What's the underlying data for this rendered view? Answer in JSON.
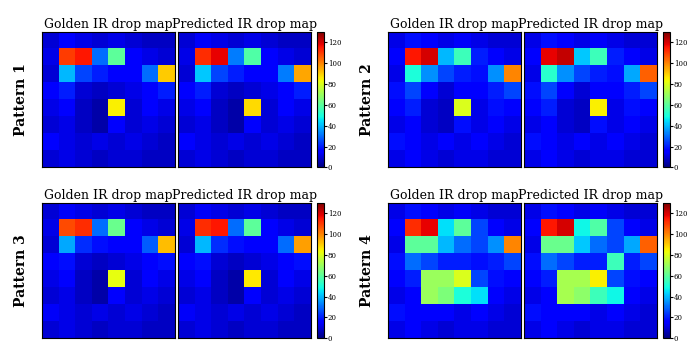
{
  "chart_data": [
    {
      "type": "heatmap",
      "group": "Pattern 1",
      "title": "Golden IR drop map",
      "tick_labels": false,
      "color_range": [
        0,
        130
      ],
      "cells": [
        [
          10,
          15,
          12,
          10,
          12,
          10,
          8,
          8
        ],
        [
          12,
          110,
          115,
          30,
          60,
          15,
          12,
          10
        ],
        [
          10,
          40,
          25,
          20,
          15,
          15,
          30,
          90
        ],
        [
          15,
          20,
          10,
          8,
          10,
          12,
          15,
          20
        ],
        [
          12,
          15,
          8,
          5,
          85,
          10,
          15,
          12
        ],
        [
          10,
          12,
          8,
          5,
          15,
          10,
          12,
          10
        ],
        [
          15,
          12,
          10,
          12,
          10,
          12,
          10,
          8
        ],
        [
          10,
          12,
          10,
          8,
          10,
          10,
          8,
          8
        ]
      ]
    },
    {
      "type": "heatmap",
      "group": "Pattern 1",
      "title": "Predicted IR drop map",
      "tick_labels": false,
      "color_range": [
        0,
        130
      ],
      "colorbar_ticks": [
        0,
        20,
        40,
        60,
        80,
        100,
        120
      ],
      "cells": [
        [
          10,
          14,
          12,
          10,
          12,
          10,
          8,
          8
        ],
        [
          12,
          112,
          118,
          32,
          58,
          15,
          12,
          10
        ],
        [
          10,
          42,
          25,
          20,
          15,
          15,
          32,
          95
        ],
        [
          15,
          20,
          10,
          8,
          10,
          12,
          15,
          20
        ],
        [
          12,
          15,
          8,
          5,
          88,
          10,
          15,
          12
        ],
        [
          10,
          12,
          8,
          5,
          15,
          10,
          12,
          10
        ],
        [
          15,
          12,
          10,
          12,
          10,
          12,
          10,
          8
        ],
        [
          10,
          12,
          10,
          8,
          10,
          10,
          8,
          8
        ]
      ]
    },
    {
      "type": "heatmap",
      "group": "Pattern 2",
      "title": "Golden IR drop map",
      "tick_labels": false,
      "color_range": [
        0,
        130
      ],
      "cells": [
        [
          12,
          18,
          15,
          12,
          14,
          12,
          10,
          10
        ],
        [
          15,
          115,
          120,
          40,
          55,
          20,
          15,
          12
        ],
        [
          12,
          50,
          35,
          25,
          20,
          18,
          35,
          100
        ],
        [
          18,
          25,
          15,
          10,
          15,
          15,
          20,
          25
        ],
        [
          15,
          20,
          10,
          8,
          80,
          12,
          18,
          15
        ],
        [
          12,
          15,
          10,
          8,
          18,
          12,
          15,
          12
        ],
        [
          18,
          15,
          12,
          15,
          12,
          15,
          12,
          10
        ],
        [
          12,
          15,
          12,
          10,
          12,
          12,
          10,
          10
        ]
      ]
    },
    {
      "type": "heatmap",
      "group": "Pattern 2",
      "title": "Predicted IR drop map",
      "tick_labels": false,
      "color_range": [
        0,
        130
      ],
      "colorbar_ticks": [
        0,
        20,
        40,
        60,
        80,
        100,
        120
      ],
      "cells": [
        [
          12,
          18,
          15,
          12,
          14,
          12,
          10,
          10
        ],
        [
          15,
          118,
          122,
          42,
          55,
          20,
          15,
          12
        ],
        [
          12,
          52,
          35,
          25,
          20,
          18,
          38,
          105
        ],
        [
          18,
          25,
          15,
          10,
          15,
          15,
          20,
          25
        ],
        [
          15,
          20,
          10,
          8,
          85,
          12,
          18,
          15
        ],
        [
          12,
          15,
          10,
          8,
          18,
          12,
          15,
          12
        ],
        [
          18,
          15,
          12,
          15,
          12,
          15,
          12,
          10
        ],
        [
          12,
          15,
          12,
          10,
          12,
          12,
          10,
          10
        ]
      ]
    },
    {
      "type": "heatmap",
      "group": "Pattern 3",
      "title": "Golden IR drop map",
      "tick_labels": false,
      "color_range": [
        0,
        130
      ],
      "cells": [
        [
          10,
          14,
          12,
          10,
          12,
          10,
          8,
          8
        ],
        [
          12,
          108,
          112,
          30,
          62,
          15,
          12,
          10
        ],
        [
          10,
          38,
          22,
          18,
          15,
          15,
          28,
          92
        ],
        [
          15,
          18,
          10,
          8,
          10,
          12,
          15,
          18
        ],
        [
          12,
          15,
          8,
          5,
          82,
          10,
          15,
          12
        ],
        [
          10,
          12,
          8,
          5,
          15,
          10,
          12,
          10
        ],
        [
          14,
          12,
          10,
          12,
          10,
          12,
          10,
          8
        ],
        [
          10,
          12,
          10,
          8,
          10,
          10,
          8,
          8
        ]
      ]
    },
    {
      "type": "heatmap",
      "group": "Pattern 3",
      "title": "Predicted IR drop map",
      "tick_labels": false,
      "color_range": [
        0,
        130
      ],
      "colorbar_ticks": [
        0,
        20,
        40,
        60,
        80,
        100,
        120
      ],
      "cells": [
        [
          10,
          14,
          12,
          10,
          12,
          10,
          8,
          8
        ],
        [
          12,
          112,
          115,
          30,
          60,
          15,
          12,
          10
        ],
        [
          10,
          40,
          22,
          18,
          15,
          15,
          30,
          96
        ],
        [
          15,
          18,
          10,
          8,
          10,
          12,
          15,
          18
        ],
        [
          12,
          15,
          8,
          5,
          86,
          10,
          15,
          12
        ],
        [
          10,
          12,
          8,
          5,
          15,
          10,
          12,
          10
        ],
        [
          14,
          12,
          10,
          12,
          10,
          12,
          10,
          8
        ],
        [
          10,
          12,
          10,
          8,
          10,
          10,
          8,
          8
        ]
      ]
    },
    {
      "type": "heatmap",
      "group": "Pattern 4",
      "title": "Golden IR drop map",
      "tick_labels": false,
      "color_range": [
        0,
        130
      ],
      "cells": [
        [
          12,
          18,
          15,
          12,
          14,
          12,
          10,
          10
        ],
        [
          15,
          112,
          118,
          45,
          60,
          25,
          15,
          12
        ],
        [
          12,
          60,
          60,
          40,
          30,
          25,
          35,
          100
        ],
        [
          18,
          30,
          25,
          20,
          20,
          18,
          20,
          25
        ],
        [
          15,
          20,
          70,
          70,
          80,
          25,
          18,
          15
        ],
        [
          12,
          15,
          70,
          65,
          50,
          45,
          15,
          12
        ],
        [
          18,
          15,
          15,
          15,
          12,
          15,
          12,
          10
        ],
        [
          12,
          15,
          12,
          10,
          12,
          12,
          10,
          10
        ]
      ]
    },
    {
      "type": "heatmap",
      "group": "Pattern 4",
      "title": "Predicted IR drop map",
      "tick_labels": false,
      "color_range": [
        0,
        130
      ],
      "colorbar_ticks": [
        0,
        20,
        40,
        60,
        80,
        100,
        120
      ],
      "cells": [
        [
          12,
          18,
          15,
          12,
          14,
          12,
          10,
          10
        ],
        [
          15,
          115,
          120,
          48,
          58,
          25,
          15,
          12
        ],
        [
          12,
          62,
          62,
          42,
          30,
          25,
          38,
          105
        ],
        [
          18,
          30,
          25,
          20,
          20,
          55,
          20,
          25
        ],
        [
          15,
          20,
          72,
          72,
          85,
          25,
          18,
          15
        ],
        [
          12,
          15,
          72,
          68,
          55,
          48,
          15,
          12
        ],
        [
          18,
          15,
          15,
          15,
          12,
          15,
          12,
          10
        ],
        [
          12,
          15,
          12,
          10,
          12,
          12,
          10,
          10
        ]
      ]
    }
  ]
}
